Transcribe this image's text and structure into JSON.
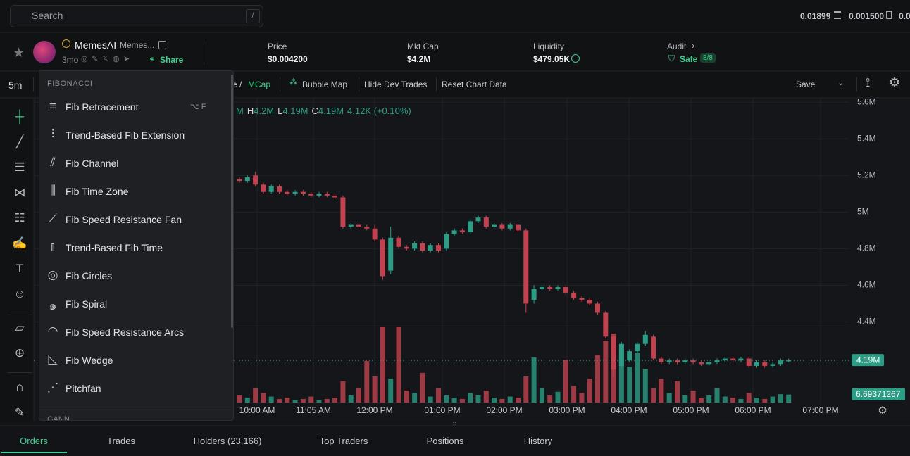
{
  "top_bar": {
    "search_placeholder": "Search",
    "search_key": "/",
    "balances": [
      "0.01899",
      "0.001500",
      "0.0"
    ]
  },
  "token": {
    "name": "MemesAI",
    "ticker": "Memes...",
    "age": "3mo",
    "share": "Share",
    "stats": [
      {
        "label": "Price",
        "value": "$0.004200"
      },
      {
        "label": "Mkt Cap",
        "value": "$4.2M"
      },
      {
        "label": "Liquidity",
        "value": "$479.05K"
      }
    ],
    "audit": {
      "label": "Audit",
      "status": "Safe",
      "score": "8/8"
    }
  },
  "toolbar": {
    "interval": "5m",
    "mode_prefix": "e /",
    "mode": "MCap",
    "buttons": [
      "Bubble Map",
      "Hide Dev Trades",
      "Reset Chart Data"
    ],
    "save": "Save"
  },
  "menu": {
    "section": "FIBONACCI",
    "shortcut": "⌥ F",
    "next_section": "GANN",
    "items": [
      "Fib Retracement",
      "Trend-Based Fib Extension",
      "Fib Channel",
      "Fib Time Zone",
      "Fib Speed Resistance Fan",
      "Trend-Based Fib Time",
      "Fib Circles",
      "Fib Spiral",
      "Fib Speed Resistance Arcs",
      "Fib Wedge",
      "Pitchfan"
    ]
  },
  "chart_data": {
    "type": "candlestick",
    "legend": [
      {
        "key": "",
        "value": "M"
      },
      {
        "key": "H",
        "value": "4.2M"
      },
      {
        "key": "L",
        "value": "4.19M"
      },
      {
        "key": "C",
        "value": "4.19M"
      },
      {
        "key": "",
        "value": "4.12K (+0.10%)"
      }
    ],
    "xticks": [
      "10:00 AM",
      "11:05 AM",
      "12:00 PM",
      "01:00 PM",
      "02:00 PM",
      "03:00 PM",
      "04:00 PM",
      "05:00 PM",
      "06:00 PM",
      "07:00 PM"
    ],
    "ylim": [
      3.96,
      5.62
    ],
    "yticks": [
      {
        "value": 5.6,
        "label": "5.6M"
      },
      {
        "value": 5.4,
        "label": "5.4M"
      },
      {
        "value": 5.2,
        "label": "5.2M"
      },
      {
        "value": 5,
        "label": "5M"
      },
      {
        "value": 4.8,
        "label": "4.8M"
      },
      {
        "value": 4.6,
        "label": "4.6M"
      },
      {
        "value": 4.4,
        "label": "4.4M"
      }
    ],
    "up_color": "#2a9d84",
    "down_color": "#c2434f",
    "ohlc": [
      [
        5.18,
        5.19,
        5.16,
        5.17
      ],
      [
        5.17,
        5.2,
        5.16,
        5.19
      ],
      [
        5.2,
        5.22,
        5.14,
        5.15
      ],
      [
        5.15,
        5.16,
        5.1,
        5.11
      ],
      [
        5.11,
        5.15,
        5.1,
        5.14
      ],
      [
        5.14,
        5.15,
        5.1,
        5.11
      ],
      [
        5.11,
        5.12,
        5.09,
        5.1
      ],
      [
        5.1,
        5.12,
        5.09,
        5.11
      ],
      [
        5.11,
        5.12,
        5.09,
        5.1
      ],
      [
        5.1,
        5.11,
        5.08,
        5.09
      ],
      [
        5.09,
        5.11,
        5.08,
        5.1
      ],
      [
        5.1,
        5.11,
        5.08,
        5.09
      ],
      [
        5.09,
        5.1,
        5.07,
        5.08
      ],
      [
        5.08,
        5.09,
        4.91,
        4.92
      ],
      [
        4.92,
        4.94,
        4.91,
        4.93
      ],
      [
        4.93,
        4.94,
        4.91,
        4.92
      ],
      [
        4.92,
        4.93,
        4.9,
        4.91
      ],
      [
        4.91,
        4.93,
        4.84,
        4.85
      ],
      [
        4.85,
        4.86,
        4.63,
        4.65
      ],
      [
        4.68,
        4.92,
        4.66,
        4.86
      ],
      [
        4.86,
        4.87,
        4.8,
        4.81
      ],
      [
        4.81,
        4.82,
        4.79,
        4.8
      ],
      [
        4.8,
        4.84,
        4.79,
        4.83
      ],
      [
        4.83,
        4.84,
        4.78,
        4.79
      ],
      [
        4.79,
        4.83,
        4.78,
        4.82
      ],
      [
        4.82,
        4.83,
        4.78,
        4.79
      ],
      [
        4.8,
        4.89,
        4.79,
        4.88
      ],
      [
        4.88,
        4.91,
        4.87,
        4.9
      ],
      [
        4.9,
        4.91,
        4.88,
        4.89
      ],
      [
        4.89,
        4.96,
        4.88,
        4.95
      ],
      [
        4.95,
        4.98,
        4.94,
        4.97
      ],
      [
        4.97,
        4.98,
        4.91,
        4.92
      ],
      [
        4.92,
        4.94,
        4.91,
        4.93
      ],
      [
        4.93,
        4.94,
        4.9,
        4.91
      ],
      [
        4.91,
        4.94,
        4.9,
        4.93
      ],
      [
        4.93,
        4.94,
        4.89,
        4.9
      ],
      [
        4.9,
        4.91,
        4.45,
        4.5
      ],
      [
        4.52,
        4.6,
        4.5,
        4.58
      ],
      [
        4.58,
        4.6,
        4.57,
        4.59
      ],
      [
        4.59,
        4.6,
        4.57,
        4.58
      ],
      [
        4.58,
        4.6,
        4.57,
        4.59
      ],
      [
        4.59,
        4.6,
        4.55,
        4.56
      ],
      [
        4.56,
        4.57,
        4.52,
        4.53
      ],
      [
        4.53,
        4.54,
        4.51,
        4.52
      ],
      [
        4.52,
        4.53,
        4.49,
        4.5
      ],
      [
        4.5,
        4.51,
        4.44,
        4.45
      ],
      [
        4.45,
        4.46,
        4.31,
        4.32
      ],
      [
        4.32,
        4.33,
        4.1,
        4.14
      ],
      [
        4.16,
        4.29,
        4.15,
        4.28
      ],
      [
        4.19,
        4.25,
        4.18,
        4.24
      ],
      [
        4.24,
        4.29,
        4.23,
        4.28
      ],
      [
        4.28,
        4.35,
        4.27,
        4.33
      ],
      [
        4.32,
        4.33,
        4.19,
        4.2
      ],
      [
        4.2,
        4.21,
        4.17,
        4.18
      ],
      [
        4.18,
        4.2,
        4.17,
        4.19
      ],
      [
        4.19,
        4.2,
        4.17,
        4.18
      ],
      [
        4.18,
        4.2,
        4.17,
        4.19
      ],
      [
        4.19,
        4.2,
        4.17,
        4.18
      ],
      [
        4.18,
        4.19,
        4.16,
        4.17
      ],
      [
        4.17,
        4.19,
        4.16,
        4.18
      ],
      [
        4.18,
        4.2,
        4.17,
        4.19
      ],
      [
        4.19,
        4.21,
        4.18,
        4.2
      ],
      [
        4.2,
        4.21,
        4.18,
        4.19
      ],
      [
        4.19,
        4.21,
        4.18,
        4.2
      ],
      [
        4.2,
        4.21,
        4.15,
        4.16
      ],
      [
        4.16,
        4.19,
        4.15,
        4.18
      ],
      [
        4.18,
        4.19,
        4.15,
        4.16
      ],
      [
        4.16,
        4.18,
        4.15,
        4.17
      ],
      [
        4.17,
        4.2,
        4.16,
        4.19
      ],
      [
        4.185,
        4.2,
        4.18,
        4.19
      ]
    ],
    "volume": [
      6,
      4,
      12,
      8,
      5,
      3,
      4,
      2,
      3,
      5,
      2,
      3,
      4,
      18,
      6,
      12,
      35,
      22,
      64,
      20,
      64,
      10,
      8,
      25,
      5,
      12,
      6,
      4,
      3,
      8,
      6,
      10,
      4,
      3,
      5,
      4,
      22,
      38,
      12,
      6,
      9,
      36,
      14,
      8,
      20,
      40,
      52,
      58,
      45,
      30,
      42,
      28,
      12,
      20,
      8,
      18,
      6,
      10,
      4,
      6,
      12,
      5,
      4,
      3,
      8,
      4,
      3,
      5,
      7,
      6.69371267
    ],
    "last_price": {
      "value": 4.19,
      "label": "4.19M"
    },
    "last_volume": 6.69371267
  },
  "tabs": [
    "Orders",
    "Trades",
    "Holders (23,166)",
    "Top Traders",
    "Positions",
    "History"
  ]
}
